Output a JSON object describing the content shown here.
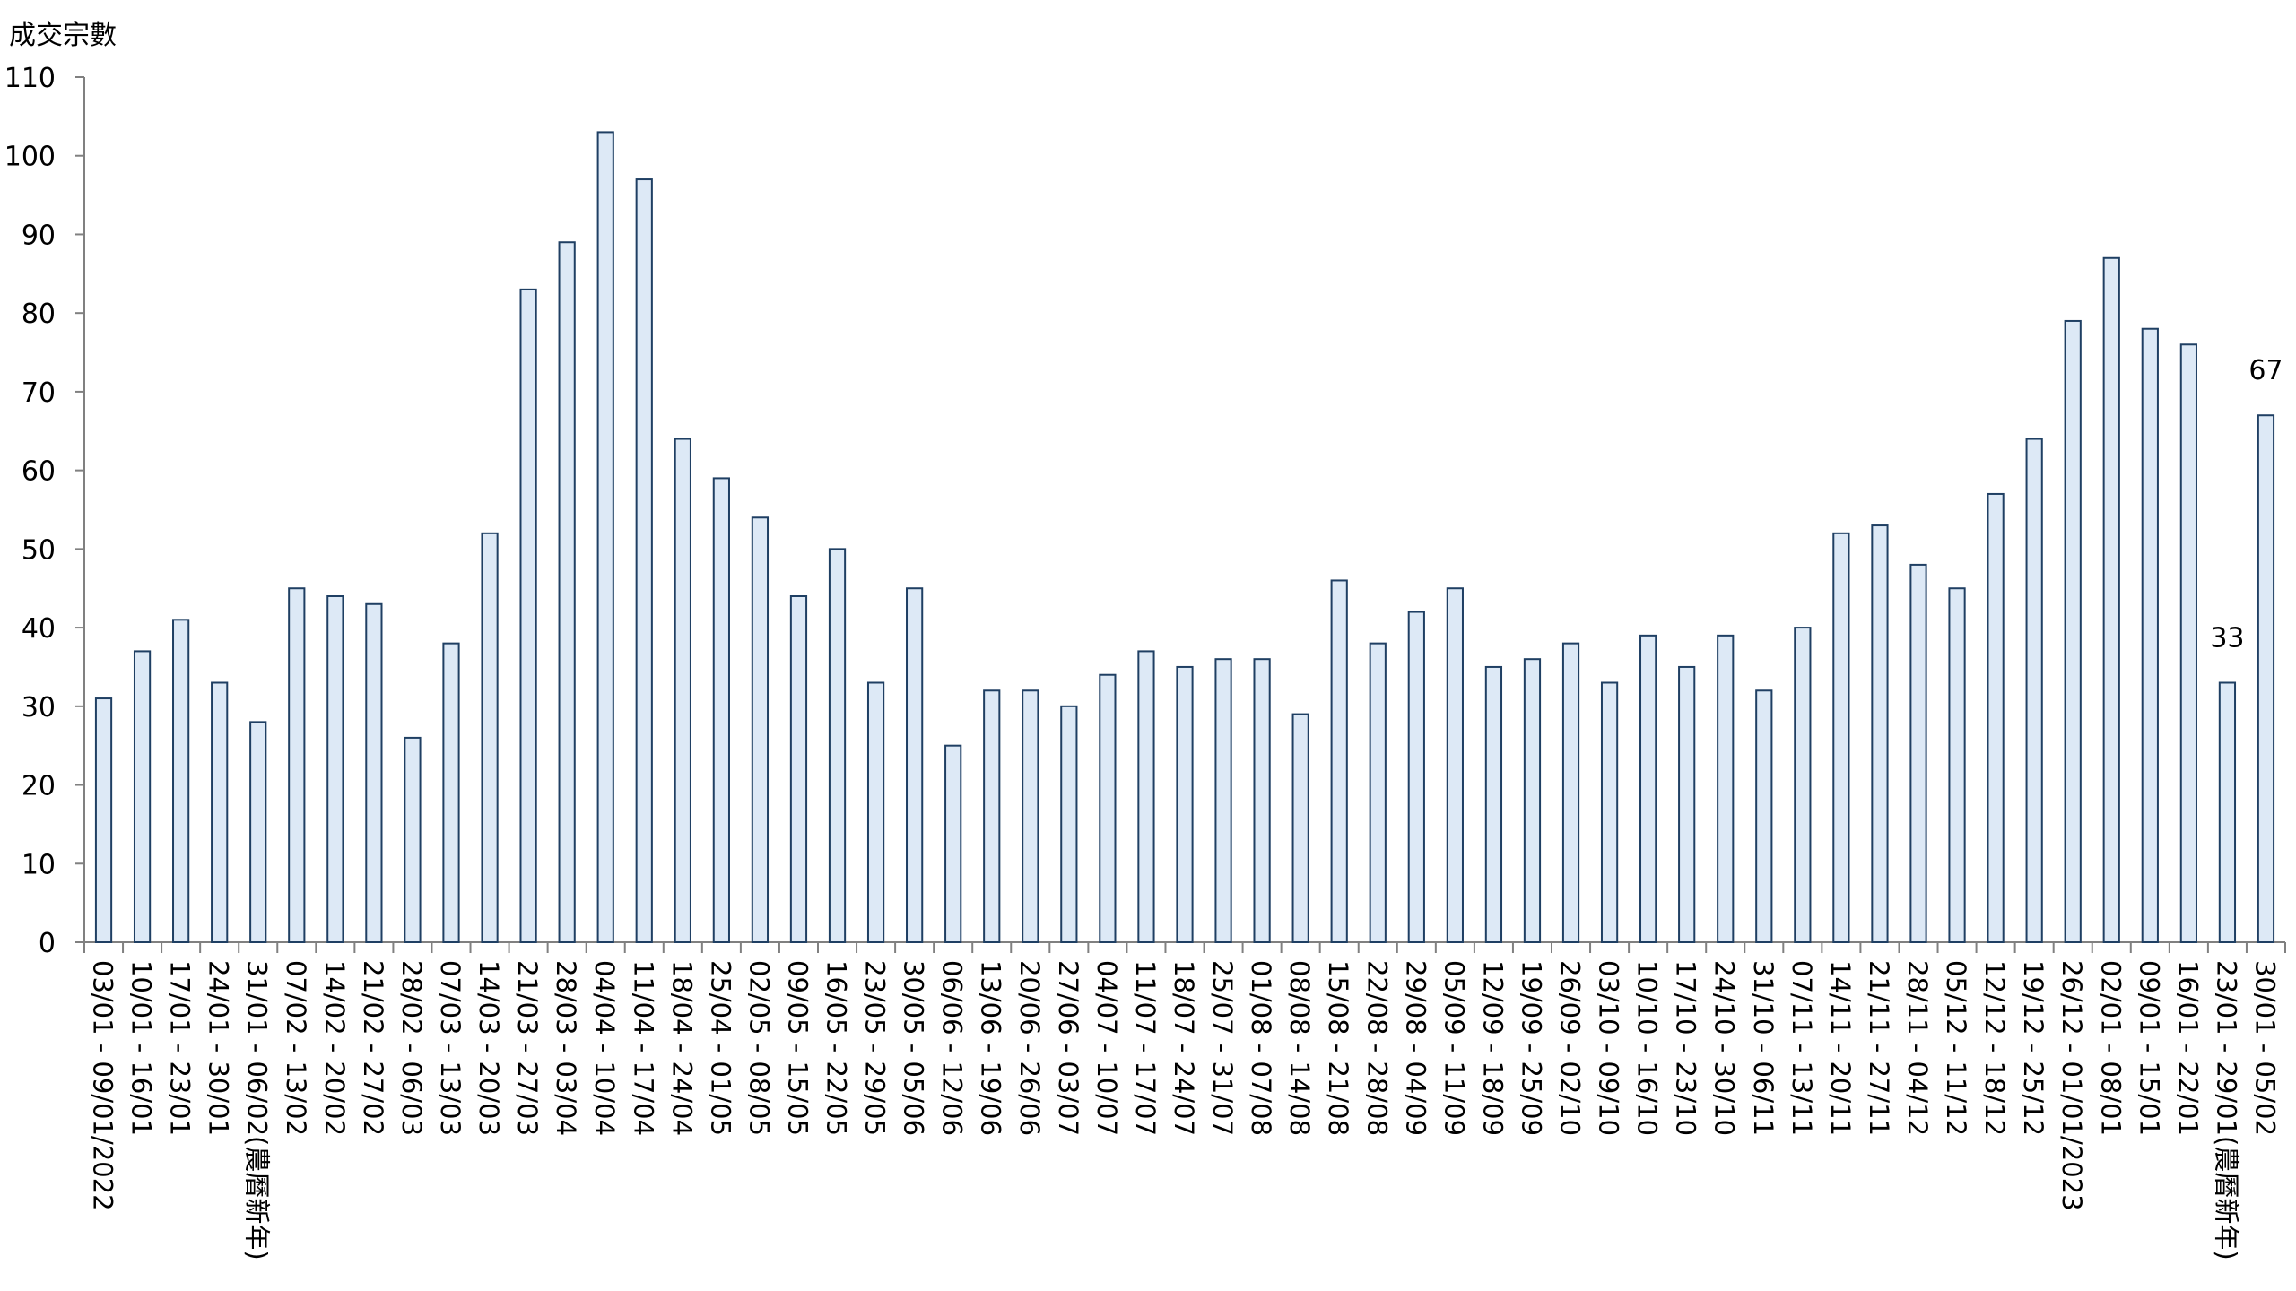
{
  "chart_data": {
    "type": "bar",
    "ylabel": "成交宗數",
    "ylim": [
      0,
      110
    ],
    "yticks": [
      0,
      10,
      20,
      30,
      40,
      50,
      60,
      70,
      80,
      90,
      100,
      110
    ],
    "grid": false,
    "bar_fill": "#dde9f6",
    "bar_stroke": "#1f3f63",
    "categories": [
      "03/01 - 09/01/2022",
      "10/01 - 16/01",
      "17/01 - 23/01",
      "24/01 - 30/01",
      "31/01 - 06/02(農曆新年)",
      "07/02 - 13/02",
      "14/02 - 20/02",
      "21/02 - 27/02",
      "28/02 - 06/03",
      "07/03 - 13/03",
      "14/03 - 20/03",
      "21/03 - 27/03",
      "28/03 - 03/04",
      "04/04 - 10/04",
      "11/04 - 17/04",
      "18/04 - 24/04",
      "25/04 - 01/05",
      "02/05 - 08/05",
      "09/05 - 15/05",
      "16/05 - 22/05",
      "23/05 - 29/05",
      "30/05 - 05/06",
      "06/06 - 12/06",
      "13/06 - 19/06",
      "20/06 - 26/06",
      "27/06 - 03/07",
      "04/07 - 10/07",
      "11/07 - 17/07",
      "18/07 - 24/07",
      "25/07 - 31/07",
      "01/08 - 07/08",
      "08/08 - 14/08",
      "15/08 - 21/08",
      "22/08 - 28/08",
      "29/08 - 04/09",
      "05/09 - 11/09",
      "12/09 - 18/09",
      "19/09 - 25/09",
      "26/09 - 02/10",
      "03/10 - 09/10",
      "10/10 - 16/10",
      "17/10 - 23/10",
      "24/10 - 30/10",
      "31/10 - 06/11",
      "07/11 - 13/11",
      "14/11 - 20/11",
      "21/11 - 27/11",
      "28/11 - 04/12",
      "05/12 - 11/12",
      "12/12 - 18/12",
      "19/12 - 25/12",
      "26/12 - 01/01/2023",
      "02/01 - 08/01",
      "09/01 - 15/01",
      "16/01 - 22/01",
      "23/01 - 29/01(農曆新年)",
      "30/01 - 05/02"
    ],
    "values": [
      31,
      37,
      41,
      33,
      28,
      45,
      44,
      43,
      26,
      38,
      52,
      83,
      89,
      103,
      97,
      64,
      59,
      54,
      44,
      50,
      33,
      45,
      25,
      32,
      32,
      30,
      34,
      37,
      35,
      36,
      36,
      29,
      46,
      38,
      42,
      45,
      35,
      36,
      38,
      33,
      39,
      35,
      39,
      32,
      40,
      52,
      53,
      48,
      45,
      57,
      64,
      79,
      87,
      78,
      76,
      33,
      67
    ],
    "data_labels": [
      {
        "index": 55,
        "text": "33"
      },
      {
        "index": 56,
        "text": "67"
      }
    ]
  }
}
